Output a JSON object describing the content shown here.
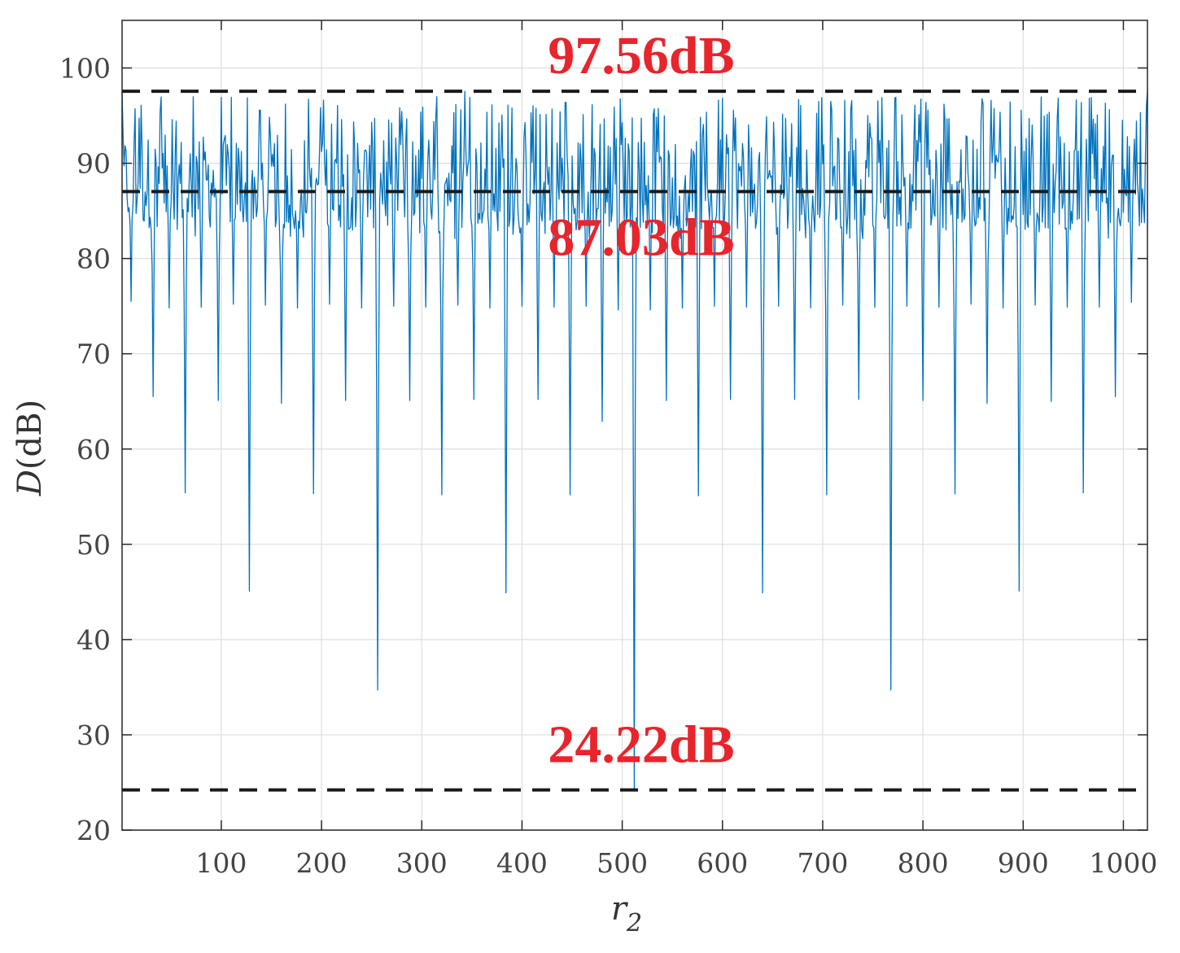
{
  "chart_data": {
    "type": "line",
    "title": "",
    "xlabel": "r",
    "xlabel_sub": "2",
    "ylabel": "D",
    "ylabel_unit": "(dB)",
    "xlim": [
      1,
      1024
    ],
    "ylim": [
      20,
      105
    ],
    "grid": true,
    "legend": "none",
    "xticks": [
      100,
      200,
      300,
      400,
      500,
      600,
      700,
      800,
      900,
      1000
    ],
    "yticks": [
      20,
      30,
      40,
      50,
      60,
      70,
      80,
      90,
      100
    ],
    "series": [
      {
        "color": "#0072bd",
        "baseline_range_db": [
          82,
          97
        ],
        "dips": [
          {
            "x": 10,
            "y": 75.5
          },
          {
            "x": 32,
            "y": 65.5
          },
          {
            "x": 48,
            "y": 74.8
          },
          {
            "x": 64,
            "y": 55.4
          },
          {
            "x": 80,
            "y": 74.9
          },
          {
            "x": 97,
            "y": 65.1
          },
          {
            "x": 112,
            "y": 75.2
          },
          {
            "x": 128,
            "y": 45.1
          },
          {
            "x": 144,
            "y": 75.1
          },
          {
            "x": 160,
            "y": 64.8
          },
          {
            "x": 176,
            "y": 74.8
          },
          {
            "x": 192,
            "y": 55.3
          },
          {
            "x": 208,
            "y": 75.2
          },
          {
            "x": 224,
            "y": 65.1
          },
          {
            "x": 240,
            "y": 74.8
          },
          {
            "x": 256,
            "y": 34.7
          },
          {
            "x": 272,
            "y": 75.0
          },
          {
            "x": 288,
            "y": 65.1
          },
          {
            "x": 304,
            "y": 74.9
          },
          {
            "x": 320,
            "y": 55.2
          },
          {
            "x": 336,
            "y": 75.1
          },
          {
            "x": 352,
            "y": 65.2
          },
          {
            "x": 368,
            "y": 74.8
          },
          {
            "x": 384,
            "y": 44.9
          },
          {
            "x": 400,
            "y": 75.0
          },
          {
            "x": 416,
            "y": 65.2
          },
          {
            "x": 432,
            "y": 74.9
          },
          {
            "x": 448,
            "y": 55.2
          },
          {
            "x": 464,
            "y": 75.0
          },
          {
            "x": 480,
            "y": 62.9
          },
          {
            "x": 496,
            "y": 74.6
          },
          {
            "x": 512,
            "y": 24.22
          },
          {
            "x": 528,
            "y": 74.6
          },
          {
            "x": 544,
            "y": 65.1
          },
          {
            "x": 560,
            "y": 74.8
          },
          {
            "x": 576,
            "y": 55.1
          },
          {
            "x": 592,
            "y": 75.0
          },
          {
            "x": 608,
            "y": 65.2
          },
          {
            "x": 624,
            "y": 74.9
          },
          {
            "x": 640,
            "y": 44.9
          },
          {
            "x": 656,
            "y": 75.0
          },
          {
            "x": 672,
            "y": 65.2
          },
          {
            "x": 688,
            "y": 74.8
          },
          {
            "x": 704,
            "y": 55.2
          },
          {
            "x": 720,
            "y": 75.1
          },
          {
            "x": 736,
            "y": 65.2
          },
          {
            "x": 752,
            "y": 74.9
          },
          {
            "x": 768,
            "y": 34.7
          },
          {
            "x": 784,
            "y": 75.0
          },
          {
            "x": 800,
            "y": 65.1
          },
          {
            "x": 816,
            "y": 74.9
          },
          {
            "x": 832,
            "y": 55.3
          },
          {
            "x": 848,
            "y": 75.2
          },
          {
            "x": 864,
            "y": 64.8
          },
          {
            "x": 880,
            "y": 74.8
          },
          {
            "x": 896,
            "y": 45.1
          },
          {
            "x": 912,
            "y": 75.1
          },
          {
            "x": 928,
            "y": 65.0
          },
          {
            "x": 944,
            "y": 74.9
          },
          {
            "x": 960,
            "y": 55.4
          },
          {
            "x": 976,
            "y": 74.9
          },
          {
            "x": 992,
            "y": 65.5
          },
          {
            "x": 1008,
            "y": 75.4
          }
        ],
        "peaks": [
          {
            "x": 1,
            "y": 97.56
          },
          {
            "x": 343,
            "y": 97.56
          },
          {
            "x": 1024,
            "y": 97.56
          }
        ]
      }
    ],
    "reference_lines": [
      {
        "y": 97.56,
        "label": "97.56dB",
        "style": "dashed",
        "color": "#1a1a1a"
      },
      {
        "y": 87.03,
        "label": "87.03dB",
        "style": "dashed",
        "color": "#1a1a1a"
      },
      {
        "y": 24.22,
        "label": "24.22dB",
        "style": "dashed",
        "color": "#1a1a1a"
      }
    ],
    "annotation_color": "#e8242c"
  }
}
